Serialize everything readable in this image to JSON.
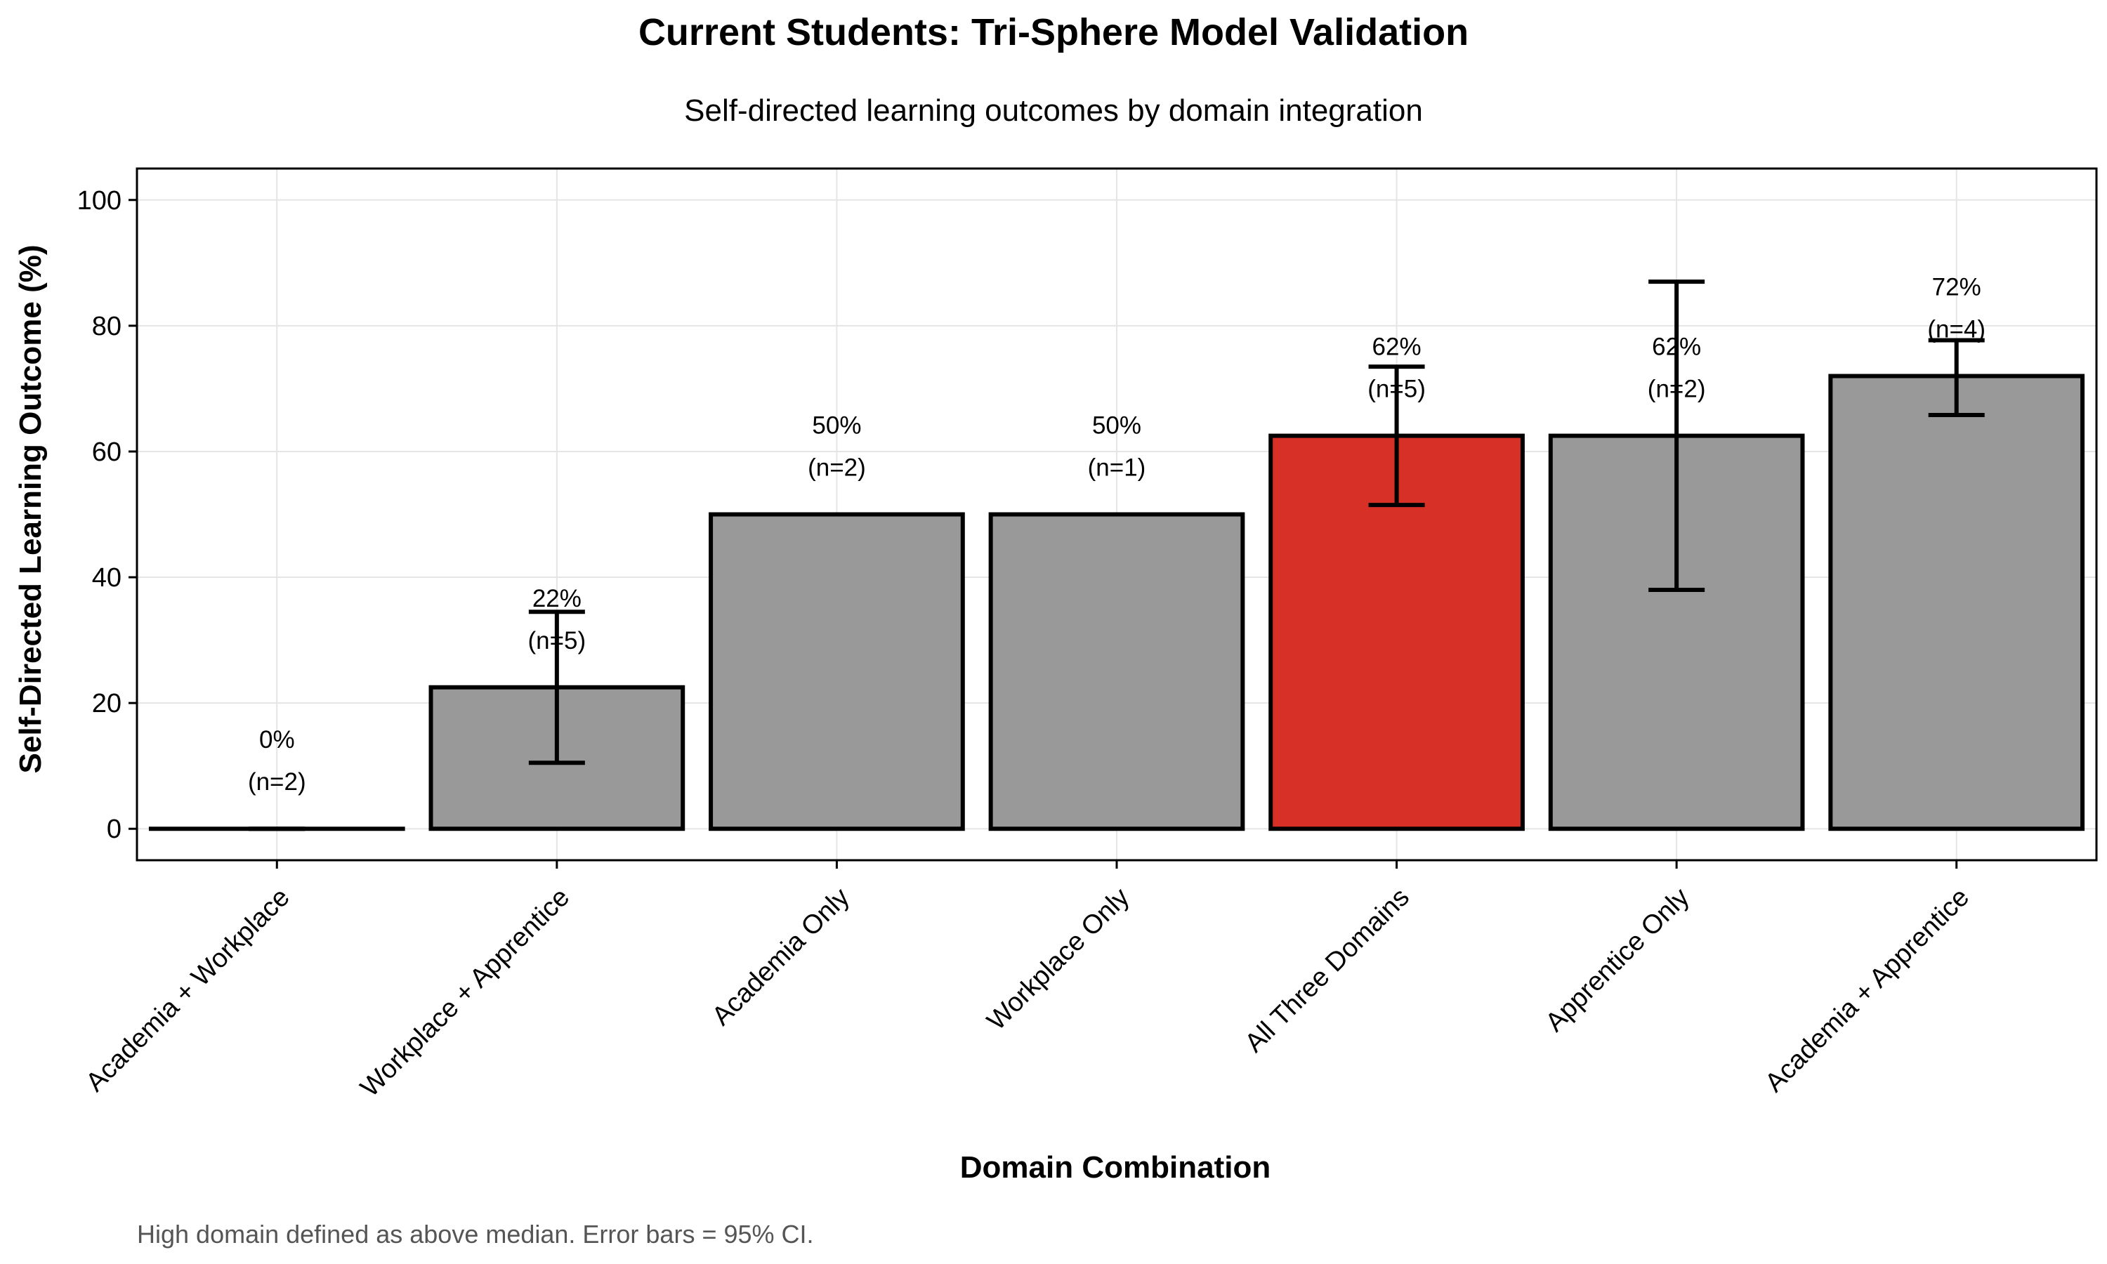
{
  "chart_data": {
    "type": "bar",
    "title": "Current Students: Tri-Sphere Model Validation",
    "subtitle": "Self-directed learning outcomes by domain integration",
    "xlabel": "Domain Combination",
    "ylabel": "Self-Directed Learning Outcome (%)",
    "ylim": [
      -5,
      105
    ],
    "yticks": [
      0,
      20,
      40,
      60,
      80,
      100
    ],
    "grid": true,
    "caption": "High domain defined as above median. Error bars = 95% CI.",
    "categories": [
      "Academia + Workplace",
      "Workplace + Apprentice",
      "Academia Only",
      "Workplace Only",
      "All Three Domains",
      "Apprentice Only",
      "Academia + Apprentice"
    ],
    "values": [
      0,
      22.5,
      50,
      50,
      62.5,
      62.5,
      72
    ],
    "ci_low": [
      0,
      10.5,
      null,
      null,
      51.5,
      38,
      65.8
    ],
    "ci_high": [
      0,
      34.5,
      null,
      null,
      73.5,
      87,
      77.7
    ],
    "value_labels": [
      "0%",
      "22%",
      "50%",
      "50%",
      "62%",
      "62%",
      "72%"
    ],
    "n_labels": [
      "(n=2)",
      "(n=5)",
      "(n=2)",
      "(n=1)",
      "(n=5)",
      "(n=2)",
      "(n=4)"
    ],
    "highlight_index": 4,
    "colors": {
      "bar": "#999999",
      "highlight": "#d73027",
      "outline": "#000000",
      "grid": "#e5e5e5"
    }
  }
}
